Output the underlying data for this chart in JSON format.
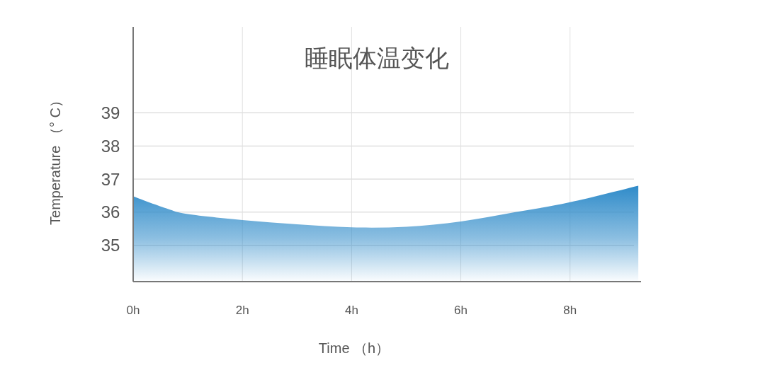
{
  "chart_data": {
    "type": "area",
    "title": "睡眠体温变化",
    "xlabel": "Time （h）",
    "ylabel": "Temperature （° C）",
    "x": [
      0,
      0.6,
      1,
      2,
      3,
      4,
      5,
      6,
      7,
      8,
      9.25
    ],
    "values": [
      36.48,
      36.12,
      35.94,
      35.76,
      35.63,
      35.54,
      35.56,
      35.72,
      36.0,
      36.3,
      36.8
    ],
    "color": "#2f8bc9",
    "xlim": [
      0,
      9.3
    ],
    "ylim": [
      33.9,
      41.6
    ],
    "xticks": [
      {
        "value": 0,
        "label": "0h"
      },
      {
        "value": 2,
        "label": "2h"
      },
      {
        "value": 4,
        "label": "4h"
      },
      {
        "value": 6,
        "label": "6h"
      },
      {
        "value": 8,
        "label": "8h"
      }
    ],
    "yticks": [
      35,
      36,
      37,
      38,
      39
    ],
    "grid": true
  }
}
